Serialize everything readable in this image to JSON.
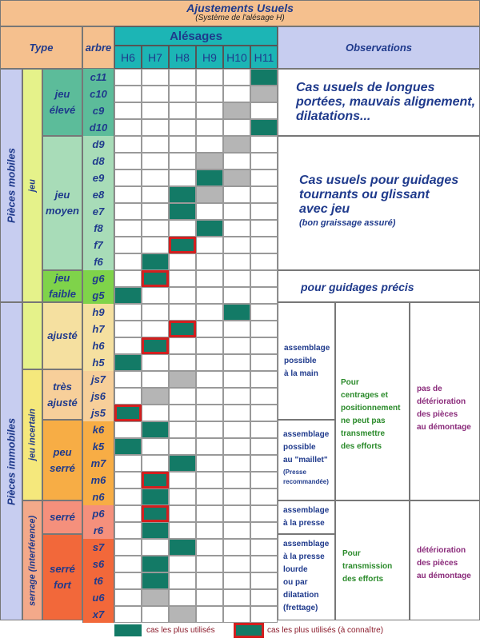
{
  "header": {
    "title": "Ajustements Usuels",
    "subtitle": "(Système de l'alésage H)",
    "type_label": "Type",
    "arbre_label": "arbre",
    "alesages_label": "Alésages",
    "observations_label": "Observations",
    "alesages": [
      "H6",
      "H7",
      "H8",
      "H9",
      "H10",
      "H11"
    ]
  },
  "arbres": [
    "c11",
    "c10",
    "c9",
    "d10",
    "d9",
    "d8",
    "e9",
    "e8",
    "e7",
    "f8",
    "f7",
    "f6",
    "g6",
    "g5",
    "h9",
    "h7",
    "h6",
    "h5",
    "js7",
    "js6",
    "js5",
    "k6",
    "k5",
    "m7",
    "m6",
    "n6",
    "p6",
    "r6",
    "s7",
    "s6",
    "t6",
    "u6",
    "x7"
  ],
  "grid": {
    "c11": [
      "",
      "",
      "",
      "",
      "",
      "G"
    ],
    "c10": [
      "",
      "",
      "",
      "",
      "",
      "S"
    ],
    "c9": [
      "",
      "",
      "",
      "",
      "S",
      ""
    ],
    "d10": [
      "",
      "",
      "",
      "",
      "",
      "G"
    ],
    "d9": [
      "",
      "",
      "",
      "",
      "S",
      ""
    ],
    "d8": [
      "",
      "",
      "",
      "S",
      "",
      ""
    ],
    "e9": [
      "",
      "",
      "",
      "G",
      "S",
      ""
    ],
    "e8": [
      "",
      "",
      "G",
      "S",
      "",
      ""
    ],
    "e7": [
      "",
      "",
      "G",
      "",
      "",
      ""
    ],
    "f8": [
      "",
      "",
      "",
      "G",
      "",
      ""
    ],
    "f7": [
      "",
      "",
      "R",
      "",
      "",
      ""
    ],
    "f6": [
      "",
      "G",
      "",
      "",
      "",
      ""
    ],
    "g6": [
      "",
      "R",
      "",
      "",
      "",
      ""
    ],
    "g5": [
      "G",
      "",
      "",
      "",
      "",
      ""
    ],
    "h9": [
      "",
      "",
      "",
      "",
      "G",
      ""
    ],
    "h7": [
      "",
      "",
      "R",
      "",
      "",
      ""
    ],
    "h6": [
      "",
      "R",
      "",
      "",
      "",
      ""
    ],
    "h5": [
      "G",
      "",
      "",
      "",
      "",
      ""
    ],
    "js7": [
      "",
      "",
      "S",
      "",
      "",
      ""
    ],
    "js6": [
      "",
      "S",
      "",
      "",
      "",
      ""
    ],
    "js5": [
      "R",
      "",
      "",
      "",
      "",
      ""
    ],
    "k6": [
      "",
      "G",
      "",
      "",
      "",
      ""
    ],
    "k5": [
      "G",
      "",
      "",
      "",
      "",
      ""
    ],
    "m7": [
      "",
      "",
      "G",
      "",
      "",
      ""
    ],
    "m6": [
      "",
      "R",
      "",
      "",
      "",
      ""
    ],
    "n6": [
      "",
      "G",
      "",
      "",
      "",
      ""
    ],
    "p6": [
      "",
      "R",
      "",
      "",
      "",
      ""
    ],
    "r6": [
      "",
      "G",
      "",
      "",
      "",
      ""
    ],
    "s7": [
      "",
      "",
      "G",
      "",
      "",
      ""
    ],
    "s6": [
      "",
      "G",
      "",
      "",
      "",
      ""
    ],
    "t6": [
      "",
      "G",
      "",
      "",
      "",
      ""
    ],
    "u6": [
      "",
      "S",
      "",
      "",
      "",
      ""
    ],
    "x7": [
      "",
      "",
      "S",
      "",
      "",
      ""
    ]
  },
  "types": {
    "pieces_mobiles": "Pièces mobiles",
    "pieces_immobiles": "Pièces immobiles",
    "jeu": "jeu",
    "jeu_incertain": "jeu incertain",
    "serrage": "serrage (interférence)",
    "jeu_eleve": [
      "jeu",
      "élevé"
    ],
    "jeu_moyen": [
      "jeu",
      "moyen"
    ],
    "jeu_faible": [
      "jeu",
      "faible"
    ],
    "ajuste": "ajusté",
    "tres_ajuste": [
      "très",
      "ajusté"
    ],
    "peu_serre": [
      "peu",
      "serré"
    ],
    "serre": "serré",
    "serre_fort": [
      "serré",
      "fort"
    ]
  },
  "observations": {
    "jeu_eleve": [
      "Cas usuels de longues",
      "portées, mauvais alignement,",
      "dilatations..."
    ],
    "jeu_moyen": [
      "Cas usuels pour guidages",
      "tournants ou glissant",
      "avec jeu"
    ],
    "jeu_moyen_note": "(bon graissage assuré)",
    "jeu_faible": "pour guidages précis",
    "main": [
      "assemblage",
      "possible",
      "à la main"
    ],
    "maillet": [
      "assemblage",
      "possible",
      "au \"maillet\""
    ],
    "maillet_note": [
      "(Presse",
      "recommandée)"
    ],
    "centrage": [
      "Pour",
      "centrages et",
      "positionnement",
      "ne peut pas",
      "transmettre",
      "des efforts"
    ],
    "pas_deterioration": [
      "pas de",
      "détérioration",
      "des pièces",
      "au démontage"
    ],
    "presse": [
      "assemblage",
      "à la presse"
    ],
    "presse_lourde": [
      "assemblage",
      "à la presse",
      "lourde",
      "ou par",
      "dilatation",
      "(frettage)"
    ],
    "transmission": [
      "Pour",
      "transmission",
      "des efforts"
    ],
    "deterioration": [
      "détérioration",
      "des pièces",
      "au démontage"
    ]
  },
  "legend": {
    "used": "cas les plus utilisés",
    "known": "cas les plus utilisés (à connaître)"
  },
  "colors": {
    "green": "#137a66",
    "gray": "#b5b5b5",
    "red": "#d31f1f"
  }
}
